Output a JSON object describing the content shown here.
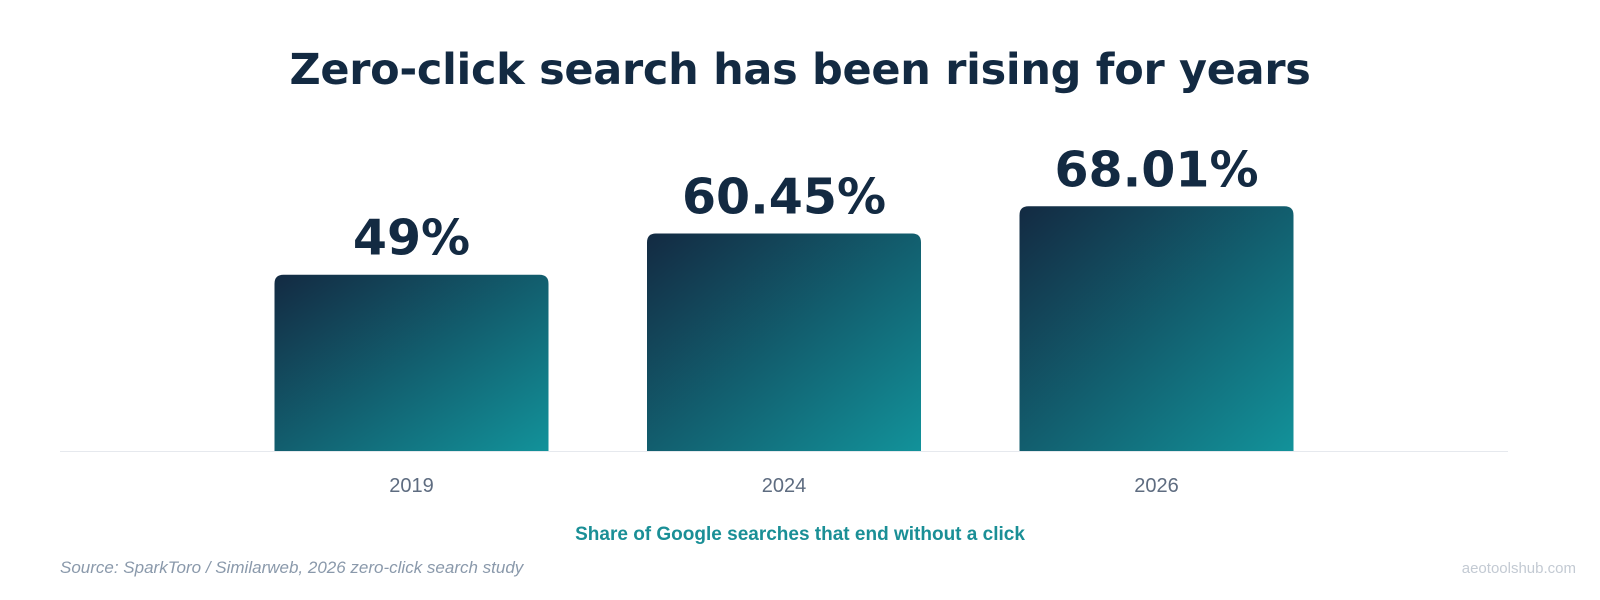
{
  "chart_data": {
    "type": "bar",
    "title": "Zero-click search has been rising for years",
    "categories": [
      "2019",
      "2024",
      "2026"
    ],
    "values": [
      49,
      60.45,
      68.01
    ],
    "data_labels": [
      "49%",
      "60.45%",
      "68.01%"
    ],
    "xlabel": "Share of Google searches that end without a click",
    "ylabel": "",
    "grid": false,
    "legend": "none"
  },
  "footer": {
    "source": "Source: SparkToro / Similarweb, 2026 zero-click search study",
    "brand": "aeotoolshub.com"
  },
  "colors": {
    "title": "#132a42",
    "bar_gradient_start": "#132a42",
    "bar_gradient_end": "#12929a",
    "subtitle": "#1a8f96",
    "tick_label": "#5e6c80",
    "source": "#8a99ab",
    "brand": "#c3cad3",
    "baseline": "#e6e9ee"
  }
}
